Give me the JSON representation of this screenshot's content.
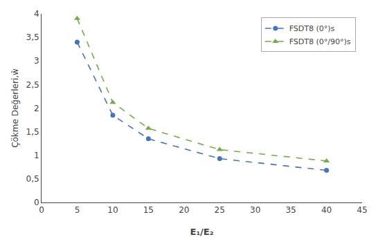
{
  "chart_data": {
    "type": "line",
    "x": [
      5,
      10,
      15,
      25,
      40
    ],
    "series": [
      {
        "name": "FSDT8 (0°)s",
        "color": "#4472C4",
        "values": [
          3.4,
          1.85,
          1.35,
          0.93,
          0.68
        ],
        "marker": "circle",
        "line_style": "dashed"
      },
      {
        "name": "FSDT8 (0°/90°)s",
        "color": "#70AD47",
        "values": [
          3.9,
          2.12,
          1.57,
          1.12,
          0.88
        ],
        "marker": "triangle",
        "line_style": "dashed"
      }
    ],
    "xlabel": "E₁/E₂",
    "ylabel": "Çökme Değerleri,ŵ",
    "xlim": [
      0,
      45
    ],
    "ylim": [
      0,
      4
    ],
    "xticks": [
      0,
      5,
      10,
      15,
      20,
      25,
      30,
      35,
      40,
      45
    ],
    "yticks": [
      0,
      {
        "value": 0.5,
        "label": "0,5"
      },
      1,
      {
        "value": 1.5,
        "label": "1,5"
      },
      2,
      {
        "value": 2.5,
        "label": "2,5"
      },
      3,
      {
        "value": 3.5,
        "label": "3,5"
      },
      4
    ],
    "grid": false,
    "legend": "upper right"
  }
}
